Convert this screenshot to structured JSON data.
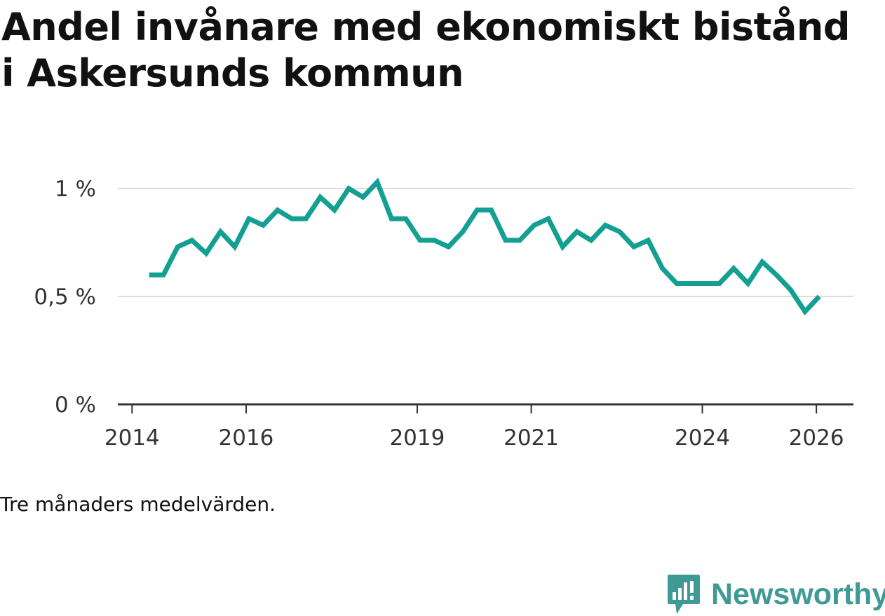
{
  "title": "Andel invånare med ekonomiskt bistånd i Askersunds kommun",
  "note": "Tre månaders medelvärden.",
  "brand": {
    "name": "Newsworthy",
    "icon": "bar-chart-speech-bubble-icon",
    "color": "#3f9a96"
  },
  "chart_data": {
    "type": "line",
    "title": "Andel invånare med ekonomiskt bistånd i Askersunds kommun",
    "xlabel": "",
    "ylabel": "",
    "y_ticks": [
      {
        "value": 0,
        "label": "0 %"
      },
      {
        "value": 0.5,
        "label": "0,5 %"
      },
      {
        "value": 1,
        "label": "1 %"
      }
    ],
    "x_ticks": [
      {
        "value": 2014,
        "label": "2014"
      },
      {
        "value": 2016,
        "label": "2016"
      },
      {
        "value": 2019,
        "label": "2019"
      },
      {
        "value": 2021,
        "label": "2021"
      },
      {
        "value": 2024,
        "label": "2024"
      },
      {
        "value": 2026,
        "label": "2026"
      }
    ],
    "xlim": [
      2013.75,
      2026.65
    ],
    "ylim": [
      0,
      1
    ],
    "grid": true,
    "line_color": "#13a093",
    "series": [
      {
        "x": [
          2014.3,
          2014.55,
          2014.8,
          2015.05,
          2015.3,
          2015.55,
          2015.8,
          2016.05,
          2016.3,
          2016.55,
          2016.8,
          2017.05,
          2017.3,
          2017.55,
          2017.8,
          2018.05,
          2018.3,
          2018.55,
          2018.8,
          2019.05,
          2019.3,
          2019.55,
          2019.8,
          2020.05,
          2020.3,
          2020.55,
          2020.8,
          2021.05,
          2021.3,
          2021.55,
          2021.8,
          2022.05,
          2022.3,
          2022.55,
          2022.8,
          2023.05,
          2023.3,
          2023.55,
          2023.8,
          2024.05,
          2024.3,
          2024.55,
          2024.8,
          2025.05,
          2025.3,
          2025.55,
          2025.8,
          2026.05
        ],
        "values": [
          0.6,
          0.6,
          0.73,
          0.76,
          0.7,
          0.8,
          0.73,
          0.86,
          0.83,
          0.9,
          0.86,
          0.86,
          0.96,
          0.9,
          1.0,
          0.96,
          1.03,
          0.86,
          0.86,
          0.76,
          0.76,
          0.73,
          0.8,
          0.9,
          0.9,
          0.76,
          0.76,
          0.83,
          0.86,
          0.73,
          0.8,
          0.76,
          0.83,
          0.8,
          0.73,
          0.76,
          0.63,
          0.56,
          0.56,
          0.56,
          0.56,
          0.63,
          0.56,
          0.66,
          0.6,
          0.53,
          0.43,
          0.5
        ]
      }
    ]
  }
}
